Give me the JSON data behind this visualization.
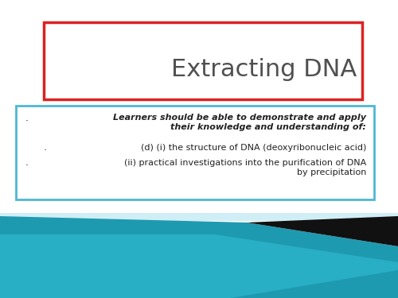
{
  "bg_color": "#ffffff",
  "title": "Extracting DNA",
  "title_fontsize": 22,
  "title_color": "#505050",
  "title_box_edge_color": "#dd2222",
  "title_box_facecolor": "#ffffff",
  "content_box_edge_color": "#4db8d4",
  "content_box_facecolor": "#ffffff",
  "bullet1_italic": "Learners should be able to demonstrate and apply\ntheir knowledge and understanding of:",
  "bullet2": "(d) (i) the structure of DNA (deoxyribonucleic acid)",
  "bullet3": "(ii) practical investigations into the purification of DNA\nby precipitation",
  "text_color": "#222222",
  "teal_color": "#1e9ab0",
  "teal_light": "#d0eef5",
  "black_color": "#111111"
}
